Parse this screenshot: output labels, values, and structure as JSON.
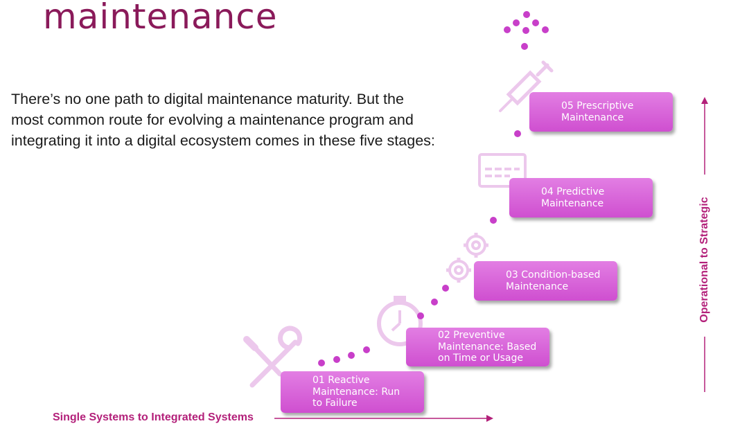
{
  "title": "maintenance",
  "intro_lines": [
    "There’s no one path to digital maintenance maturity. But the",
    "most common route for evolving a maintenance program and",
    "integrating it into a digital ecosystem comes in these five stages:"
  ],
  "stages": [
    {
      "label": "01 Reactive\nMaintenance: Run\nto Failure",
      "icon": "wrench-screwdriver-icon"
    },
    {
      "label": "02 Preventive\nMaintenance: Based\non Time or Usage",
      "icon": "stopwatch-icon"
    },
    {
      "label": "03 Condition-based\nMaintenance",
      "icon": "gears-icon"
    },
    {
      "label": "04 Predictive\nMaintenance",
      "icon": "chat-bubble-icon"
    },
    {
      "label": "05 Prescriptive\nMaintenance",
      "icon": "syringe-icon"
    }
  ],
  "x_axis_label": "Single Systems to Integrated Systems",
  "y_axis_label": "Operational to Strategic",
  "colors": {
    "title": "#8a1a5a",
    "stage_fill": "#d65fd7",
    "dots": "#c83fc9",
    "axis": "#b3207a",
    "icon": "#ecc8ec"
  }
}
